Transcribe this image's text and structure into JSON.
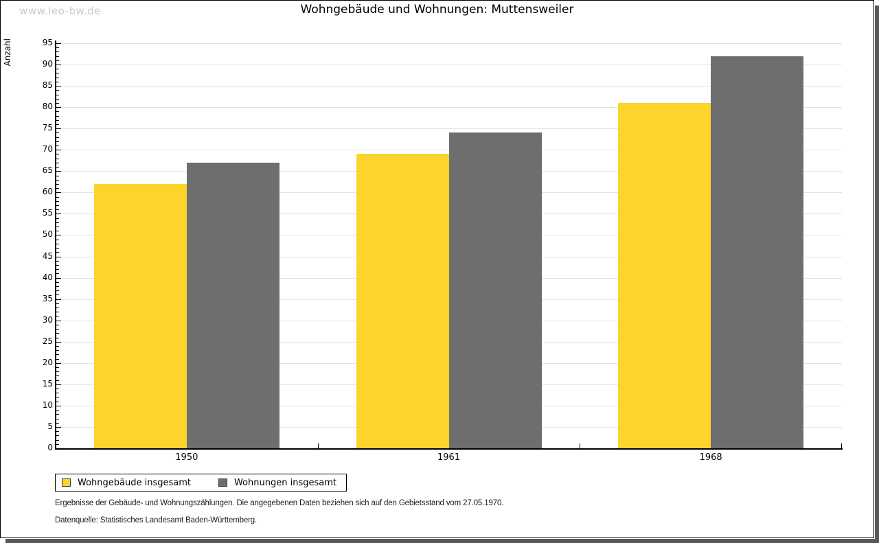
{
  "watermark": "www.leo-bw.de",
  "title": "Wohngebäude und Wohnungen: Muttensweiler",
  "colors": {
    "series1": "#FCD42C",
    "series2": "#6E6E6E",
    "grid": "#E3E3E3",
    "shadow": "#58585A",
    "watermark": "#CBCBCB"
  },
  "chart_data": {
    "type": "bar",
    "title": "Wohngebäude und Wohnungen: Muttensweiler",
    "categories": [
      "1950",
      "1961",
      "1968"
    ],
    "series": [
      {
        "name": "Wohngebäude insgesamt",
        "color": "#FCD42C",
        "values": [
          62,
          69,
          81
        ]
      },
      {
        "name": "Wohnungen insgesamt",
        "color": "#6E6E6E",
        "values": [
          67,
          74,
          92
        ]
      }
    ],
    "xlabel": "",
    "ylabel": "Anzahl",
    "ylim": [
      0,
      95
    ],
    "ytick_step": 5,
    "yminor_step": 1,
    "grid": true,
    "legend_position": "bottom-left"
  },
  "footer": {
    "line1": "Ergebnisse der Gebäude- und Wohnungszählungen. Die angegebenen Daten beziehen sich auf den Gebietsstand vom 27.05.1970.",
    "line2": "Datenquelle: Statistisches Landesamt Baden-Württemberg."
  }
}
